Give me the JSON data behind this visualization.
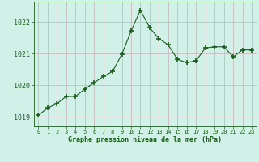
{
  "x": [
    0,
    1,
    2,
    3,
    4,
    5,
    6,
    7,
    8,
    9,
    10,
    11,
    12,
    13,
    14,
    15,
    16,
    17,
    18,
    19,
    20,
    21,
    22,
    23
  ],
  "y": [
    1019.05,
    1019.28,
    1019.42,
    1019.65,
    1019.65,
    1019.88,
    1020.08,
    1020.28,
    1020.44,
    1020.98,
    1021.72,
    1022.38,
    1021.82,
    1021.48,
    1021.28,
    1020.82,
    1020.72,
    1020.78,
    1021.18,
    1021.22,
    1021.22,
    1020.9,
    1021.12,
    1021.12
  ],
  "line_color": "#1a5c1a",
  "marker": "+",
  "marker_size": 4,
  "marker_lw": 1.2,
  "bg_color": "#d0f0e8",
  "grid_color": "#c8b0b8",
  "xlabel": "Graphe pression niveau de la mer (hPa)",
  "xlabel_color": "#1a5c1a",
  "tick_color": "#1a5c1a",
  "ylim": [
    1018.7,
    1022.65
  ],
  "yticks": [
    1019,
    1020,
    1021,
    1022
  ],
  "xlim": [
    -0.5,
    23.5
  ],
  "xticks": [
    0,
    1,
    2,
    3,
    4,
    5,
    6,
    7,
    8,
    9,
    10,
    11,
    12,
    13,
    14,
    15,
    16,
    17,
    18,
    19,
    20,
    21,
    22,
    23
  ]
}
